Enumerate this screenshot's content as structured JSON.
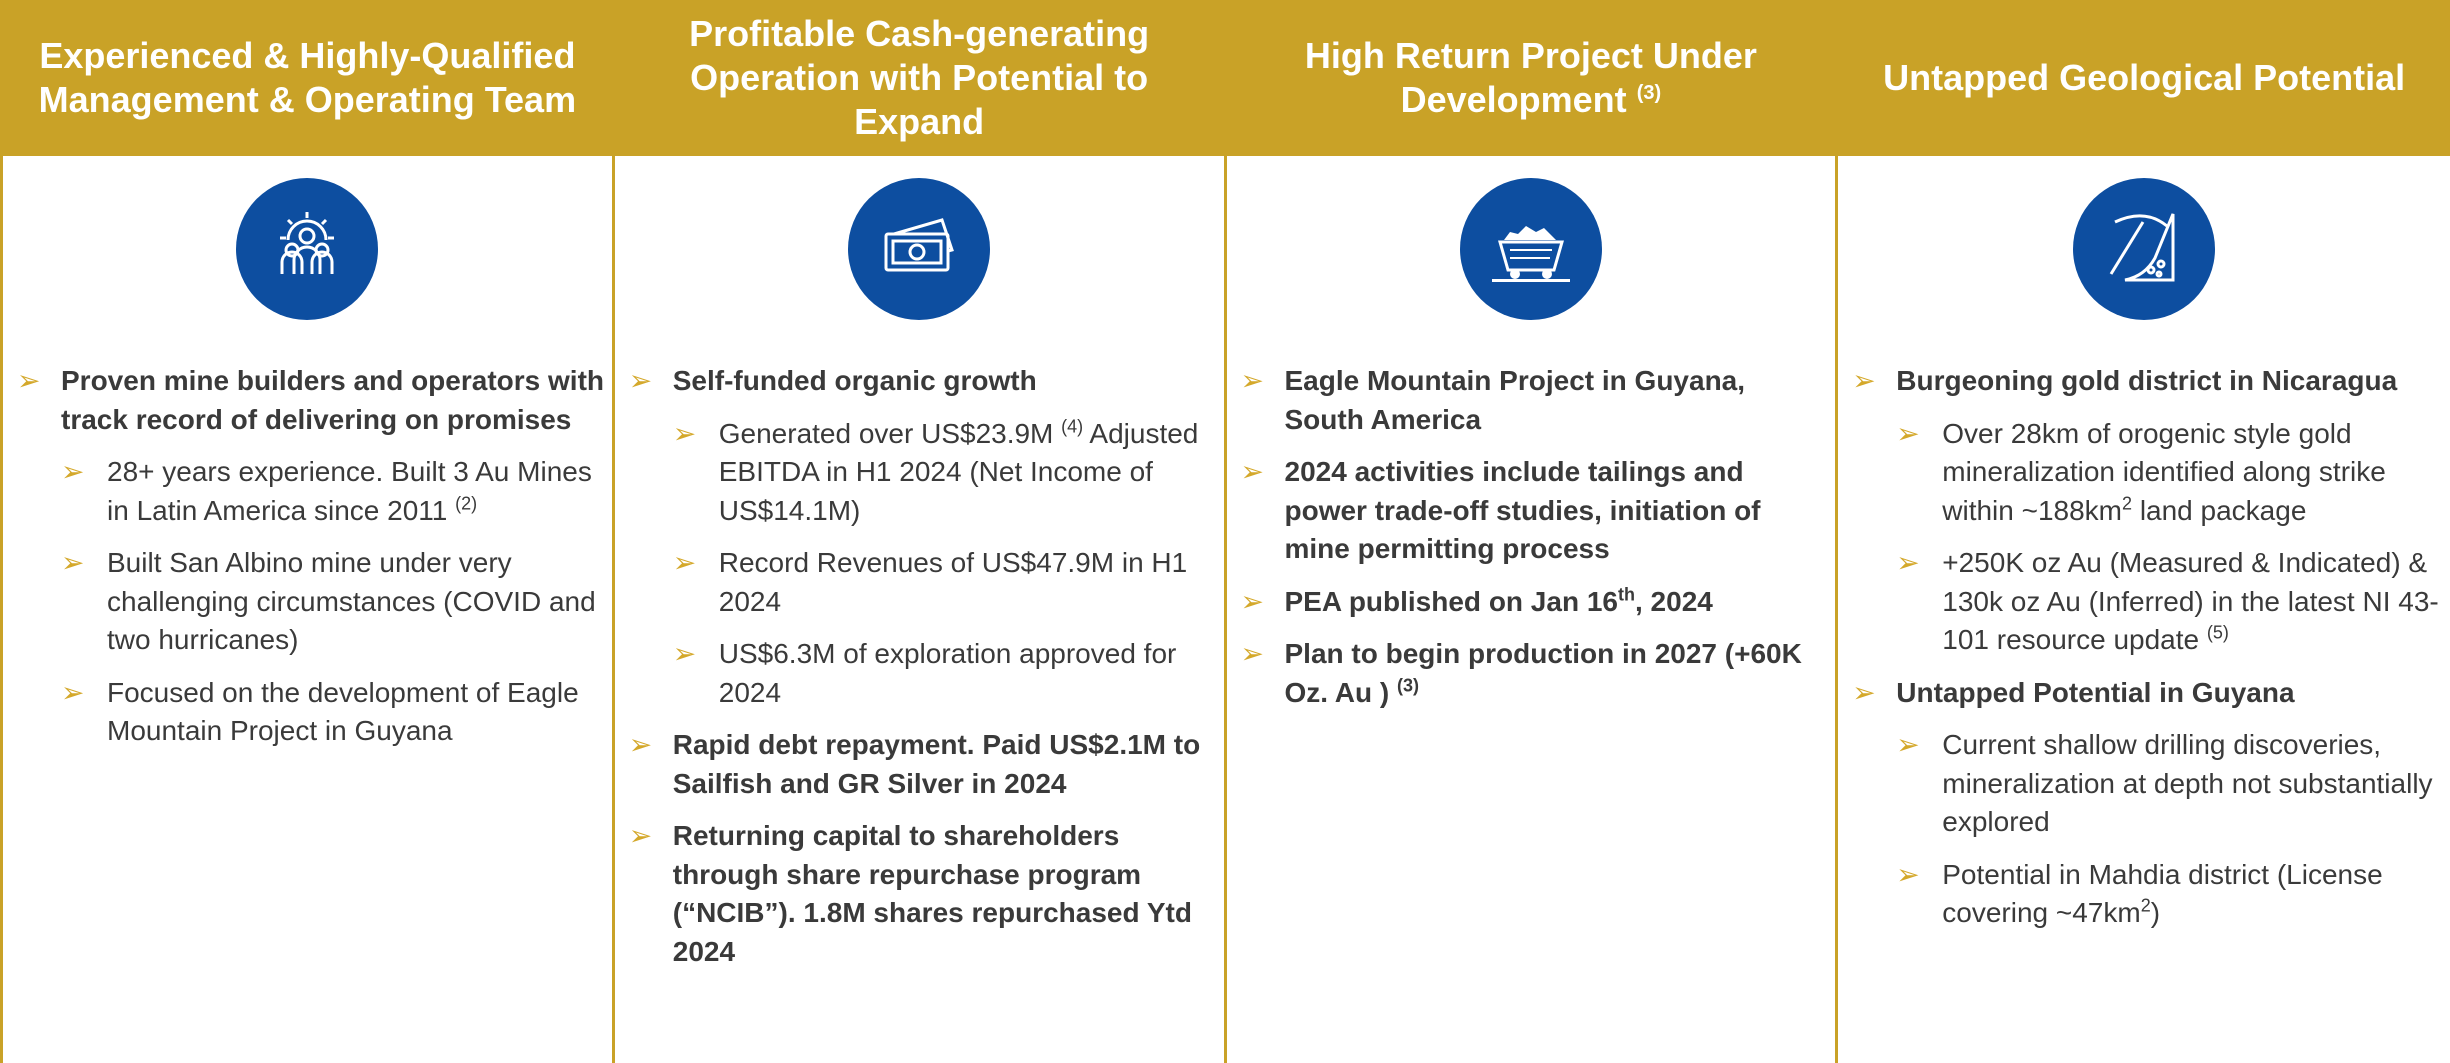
{
  "columns": [
    {
      "title": "Experienced & Highly-Qualified Management & Operating Team",
      "items": [
        {
          "text": "Proven mine builders and operators with track record of delivering on promises",
          "subitems": [
            {
              "text": "28+ years experience. Built 3 Au Mines in Latin America since 2011",
              "sup": "(2)"
            },
            {
              "text": "Built San Albino mine under very challenging circumstances (COVID and two hurricanes)"
            },
            {
              "text": "Focused on the development of Eagle Mountain Project in Guyana"
            }
          ]
        }
      ]
    },
    {
      "title": "Profitable Cash-generating Operation with Potential to Expand",
      "items": [
        {
          "text": "Self-funded organic growth",
          "subitems": [
            {
              "text": "Generated over US$23.9M",
              "sup": "(4)",
              "after": "Adjusted EBITDA in H1 2024 (Net Income of US$14.1M)"
            },
            {
              "text": "Record Revenues of US$47.9M in H1 2024"
            },
            {
              "text": "US$6.3M of exploration approved for 2024"
            }
          ]
        },
        {
          "text": "Rapid debt repayment. Paid US$2.1M to Sailfish and GR Silver in 2024"
        },
        {
          "text": "Returning capital to shareholders through share repurchase program (“NCIB”). 1.8M shares repurchased Ytd 2024"
        }
      ]
    },
    {
      "title": "High Return Project Under Development",
      "title_sup": "(3)",
      "items": [
        {
          "text": "Eagle Mountain Project in Guyana, South America"
        },
        {
          "text": "2024 activities include tailings and power trade-off studies, initiation of mine permitting process"
        },
        {
          "text": "PEA published on Jan 16",
          "sup": "th",
          "after": ", 2024"
        },
        {
          "text": "Plan to begin production in 2027 (+60K Oz. Au )",
          "sup": "(3)"
        }
      ]
    },
    {
      "title": "Untapped Geological Potential",
      "items": [
        {
          "text": "Burgeoning gold district in Nicaragua",
          "subitems": [
            {
              "text": "Over 28km of orogenic style gold mineralization identified along strike within ~188km",
              "sup": "2",
              "after": "land package"
            },
            {
              "text": "+250K oz Au (Measured & Indicated) & 130k oz Au (Inferred) in the latest NI 43-101 resource update",
              "sup": "(5)"
            }
          ]
        },
        {
          "text": "Untapped Potential in Guyana",
          "subitems": [
            {
              "text": "Current shallow drilling discoveries, mineralization at depth not substantially explored"
            },
            {
              "text": "Potential in Mahdia district (License covering ~47km",
              "sup": "2",
              "after": ")"
            }
          ]
        }
      ]
    }
  ]
}
